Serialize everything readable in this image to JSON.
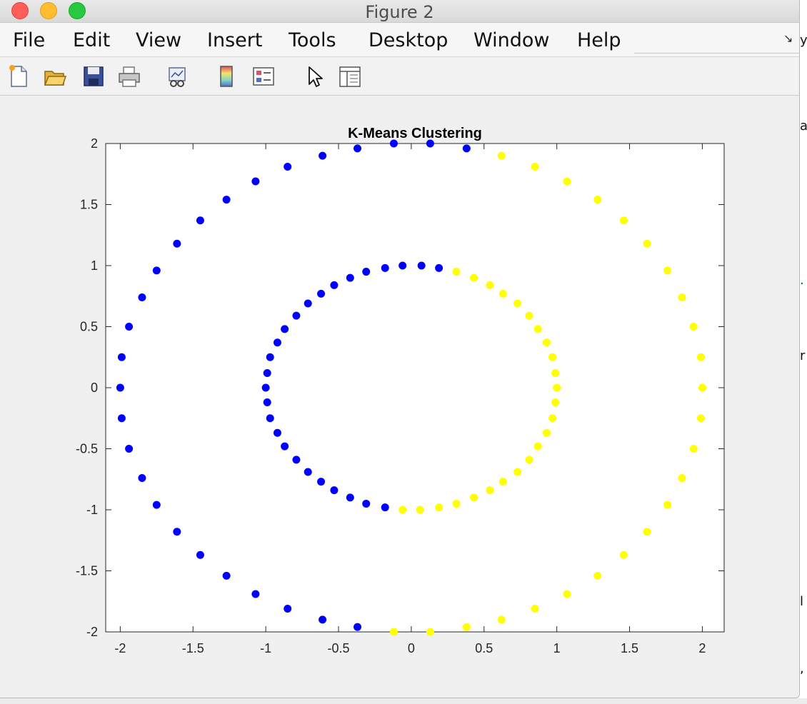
{
  "window": {
    "title": "Figure 2"
  },
  "menu": {
    "items": [
      "File",
      "Edit",
      "View",
      "Insert",
      "Tools",
      "Desktop",
      "Window",
      "Help"
    ]
  },
  "toolbar": {
    "icons": [
      "new-figure-icon",
      "open-file-icon",
      "save-icon",
      "print-icon",
      "link-plot-icon",
      "colorbar-icon",
      "legend-icon",
      "select-pointer-icon",
      "property-inspector-icon"
    ]
  },
  "colors": {
    "cluster1": "#0000ff",
    "cluster2": "#ffff00",
    "axes_background": "#ffffff",
    "figure_background": "#f0f0f0"
  },
  "chart_data": {
    "type": "scatter",
    "title": "K-Means Clustering",
    "xlabel": "",
    "ylabel": "",
    "xlim": [
      -2.1,
      2.15
    ],
    "ylim": [
      -2,
      2
    ],
    "xticks": [
      "-2",
      "-1.5",
      "-1",
      "-0.5",
      "0",
      "0.5",
      "1",
      "1.5",
      "2"
    ],
    "yticks": [
      "2",
      "1.5",
      "1",
      "0.5",
      "0",
      "-0.5",
      "-1",
      "-1.5",
      "-2"
    ],
    "grid": false,
    "legend": "none",
    "series": [
      {
        "color": "#0000ff",
        "points": [
          [
            -2.0,
            0.0
          ],
          [
            -1.99,
            0.25
          ],
          [
            -1.99,
            -0.25
          ],
          [
            -1.94,
            0.5
          ],
          [
            -1.94,
            -0.5
          ],
          [
            -1.85,
            0.74
          ],
          [
            -1.85,
            -0.74
          ],
          [
            -1.75,
            0.96
          ],
          [
            -1.75,
            -0.96
          ],
          [
            -1.61,
            1.18
          ],
          [
            -1.61,
            -1.18
          ],
          [
            -1.45,
            1.37
          ],
          [
            -1.45,
            -1.37
          ],
          [
            -1.27,
            1.54
          ],
          [
            -1.27,
            -1.54
          ],
          [
            -1.07,
            1.69
          ],
          [
            -1.07,
            -1.69
          ],
          [
            -0.85,
            1.81
          ],
          [
            -0.85,
            -1.81
          ],
          [
            -0.61,
            1.9
          ],
          [
            -0.61,
            -1.9
          ],
          [
            -0.37,
            1.96
          ],
          [
            -0.37,
            -1.96
          ],
          [
            -0.12,
            2.0
          ],
          [
            0.13,
            2.0
          ],
          [
            0.38,
            1.96
          ],
          [
            -1.0,
            0.0
          ],
          [
            -0.99,
            0.12
          ],
          [
            -0.99,
            -0.12
          ],
          [
            -0.97,
            0.25
          ],
          [
            -0.97,
            -0.25
          ],
          [
            -0.92,
            0.37
          ],
          [
            -0.92,
            -0.37
          ],
          [
            -0.87,
            0.48
          ],
          [
            -0.87,
            -0.48
          ],
          [
            -0.79,
            0.59
          ],
          [
            -0.79,
            -0.59
          ],
          [
            -0.71,
            0.69
          ],
          [
            -0.71,
            -0.69
          ],
          [
            -0.62,
            0.77
          ],
          [
            -0.62,
            -0.77
          ],
          [
            -0.53,
            0.84
          ],
          [
            -0.53,
            -0.84
          ],
          [
            -0.42,
            0.9
          ],
          [
            -0.42,
            -0.9
          ],
          [
            -0.31,
            0.95
          ],
          [
            -0.31,
            -0.95
          ],
          [
            -0.18,
            0.98
          ],
          [
            -0.18,
            -0.98
          ],
          [
            -0.06,
            1.0
          ],
          [
            0.07,
            1.0
          ],
          [
            0.19,
            0.98
          ]
        ]
      },
      {
        "color": "#ffff00",
        "points": [
          [
            2.0,
            0.0
          ],
          [
            1.99,
            0.25
          ],
          [
            1.99,
            -0.25
          ],
          [
            1.94,
            0.5
          ],
          [
            1.94,
            -0.5
          ],
          [
            1.86,
            0.74
          ],
          [
            1.86,
            -0.74
          ],
          [
            1.76,
            0.96
          ],
          [
            1.76,
            -0.96
          ],
          [
            1.62,
            1.18
          ],
          [
            1.62,
            -1.18
          ],
          [
            1.46,
            1.37
          ],
          [
            1.46,
            -1.37
          ],
          [
            1.28,
            1.54
          ],
          [
            1.28,
            -1.54
          ],
          [
            1.07,
            1.69
          ],
          [
            1.07,
            -1.69
          ],
          [
            0.85,
            1.81
          ],
          [
            0.85,
            -1.81
          ],
          [
            0.62,
            1.9
          ],
          [
            0.62,
            -1.9
          ],
          [
            0.38,
            -1.96
          ],
          [
            0.13,
            -2.0
          ],
          [
            -0.12,
            -2.0
          ],
          [
            1.0,
            0.0
          ],
          [
            0.99,
            0.12
          ],
          [
            0.99,
            -0.12
          ],
          [
            0.97,
            0.25
          ],
          [
            0.97,
            -0.25
          ],
          [
            0.93,
            0.37
          ],
          [
            0.93,
            -0.37
          ],
          [
            0.87,
            0.48
          ],
          [
            0.87,
            -0.48
          ],
          [
            0.81,
            0.59
          ],
          [
            0.81,
            -0.59
          ],
          [
            0.73,
            0.69
          ],
          [
            0.73,
            -0.69
          ],
          [
            0.63,
            0.77
          ],
          [
            0.63,
            -0.77
          ],
          [
            0.54,
            0.84
          ],
          [
            0.54,
            -0.84
          ],
          [
            0.43,
            0.9
          ],
          [
            0.43,
            -0.9
          ],
          [
            0.31,
            0.95
          ],
          [
            0.31,
            -0.95
          ],
          [
            0.19,
            -0.98
          ],
          [
            0.06,
            -1.0
          ],
          [
            -0.06,
            -1.0
          ]
        ]
      }
    ]
  }
}
